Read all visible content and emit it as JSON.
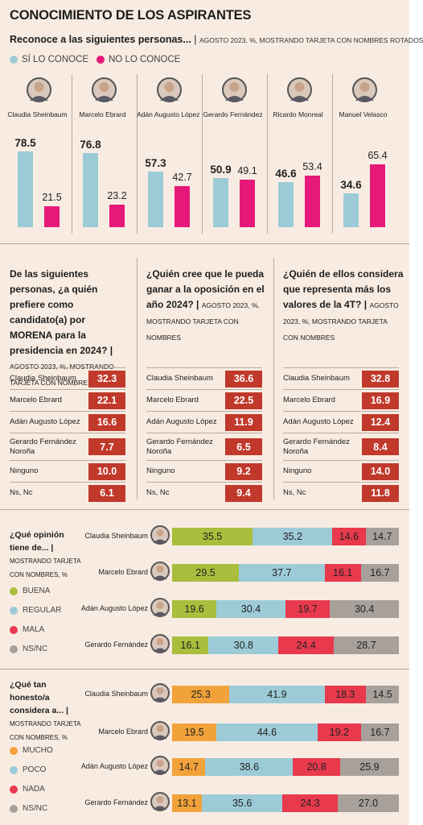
{
  "title": "CONOCIMIENTO DE LOS ASPIRANTES",
  "section1": {
    "question": "Reconoce a las siguientes personas...",
    "note": "AGOSTO 2023, %, MOSTRANDO TARJETA CON NOMBRES ROTADOS",
    "legend": [
      {
        "label": "SÍ LO CONOCE",
        "color": "#9ccbd7"
      },
      {
        "label": "NO LO CONOCE",
        "color": "#e6197a"
      }
    ]
  },
  "colors": {
    "si": "#9ccbd7",
    "no": "#e6197a",
    "red": "#c0392b",
    "buena": "#a8be3c",
    "regular": "#9ccbd7",
    "mala": "#e8394d",
    "nsnc": "#a7a09b",
    "mucho": "#f2a23a",
    "poco": "#9ccbd7",
    "nada": "#e8394d"
  },
  "chart_data": [
    {
      "type": "bar",
      "categories": [
        "Claudia Sheinbaum",
        "Marcelo Ebrard",
        "Adán Augusto López",
        "Gerardo Fernández",
        "Ricardo Monreal",
        "Manuel Velasco"
      ],
      "series": [
        {
          "name": "SÍ LO CONOCE",
          "values": [
            78.5,
            76.8,
            57.3,
            50.9,
            46.6,
            34.6
          ]
        },
        {
          "name": "NO LO CONOCE",
          "values": [
            21.5,
            23.2,
            42.7,
            49.1,
            53.4,
            65.4
          ]
        }
      ],
      "ylim": [
        0,
        100
      ]
    },
    {
      "type": "table",
      "categories": [
        "Claudia Sheinbaum",
        "Marcelo Ebrard",
        "Adán Augusto López",
        "Gerardo Fernández Noroña",
        "Ninguno",
        "Ns, Nc"
      ],
      "values": [
        "32.3",
        "22.1",
        "16.6",
        "7.7",
        "10.0",
        "6.1"
      ]
    },
    {
      "type": "table",
      "categories": [
        "Claudia Sheinbaum",
        "Marcelo Ebrard",
        "Adán Augusto López",
        "Gerardo Fernández Noroña",
        "Ninguno",
        "Ns, Nc"
      ],
      "values": [
        "36.6",
        "22.5",
        "11.9",
        "6.5",
        "9.2",
        "9.4"
      ]
    },
    {
      "type": "table",
      "categories": [
        "Claudia Sheinbaum",
        "Marcelo Ebrard",
        "Adán Augusto López",
        "Gerardo Fernández Noroña",
        "Ninguno",
        "Ns, Nc"
      ],
      "values": [
        "32.8",
        "16.9",
        "12.4",
        "8.4",
        "14.0",
        "11.8"
      ]
    },
    {
      "type": "bar",
      "categories": [
        "Claudia Sheinbaum",
        "Marcelo Ebrard",
        "Adán Augusto López",
        "Gerardo Fernández"
      ],
      "series": [
        {
          "name": "BUENA",
          "values": [
            "35.5",
            "29.5",
            "19.6",
            "16.1"
          ]
        },
        {
          "name": "REGULAR",
          "values": [
            "35.2",
            "37.7",
            "30.4",
            "30.8"
          ]
        },
        {
          "name": "MALA",
          "values": [
            "14.6",
            "16.1",
            "19.7",
            "24.4"
          ]
        },
        {
          "name": "NS/NC",
          "values": [
            "14.7",
            "16.7",
            "30.4",
            "28.7"
          ]
        }
      ]
    },
    {
      "type": "bar",
      "categories": [
        "Claudia Sheinbaum",
        "Marcelo Ebrard",
        "Adán Augusto López",
        "Gerardo Fernández"
      ],
      "series": [
        {
          "name": "MUCHO",
          "values": [
            "25.3",
            "19.5",
            "14.7",
            "13.1"
          ]
        },
        {
          "name": "POCO",
          "values": [
            "41.9",
            "44.6",
            "38.6",
            "35.6"
          ]
        },
        {
          "name": "NADA",
          "values": [
            "18.3",
            "19.2",
            "20.8",
            "24.3"
          ]
        },
        {
          "name": "NS/NC",
          "values": [
            "14.5",
            "16.7",
            "25.9",
            "27.0"
          ]
        }
      ]
    }
  ],
  "section2": {
    "q1": {
      "text": "De las siguientes personas, ¿a quién prefiere como candidato(a) por MORENA para la presidencia en 2024?",
      "note": "AGOSTO 2023, %, MOSTRANDO TARJETA CON NOMBRES"
    },
    "q2": {
      "text": "¿Quién cree que le pueda ganar a la oposición en el año 2024?",
      "note": "AGOSTO 2023, %, MOSTRANDO TARJETA CON NOMBRES"
    },
    "q3": {
      "text": "¿Quién de ellos considera que representa más los valores de la 4T?",
      "note": "AGOSTO 2023, %, MOSTRANDO TARJETA CON NOMBRES"
    }
  },
  "section3": {
    "question": "¿Qué opinión tiene de...",
    "note": "MOSTRANDO TARJETA CON NOMBRES, %",
    "legend": [
      "BUENA",
      "REGULAR",
      "MALA",
      "NS/NC"
    ]
  },
  "section4": {
    "question": "¿Qué tan honesto/a considera a...",
    "note": "MOSTRANDO TARJETA CON NOMBRES, %",
    "legend": [
      "MUCHO",
      "POCO",
      "NADA",
      "NS/NC"
    ]
  }
}
